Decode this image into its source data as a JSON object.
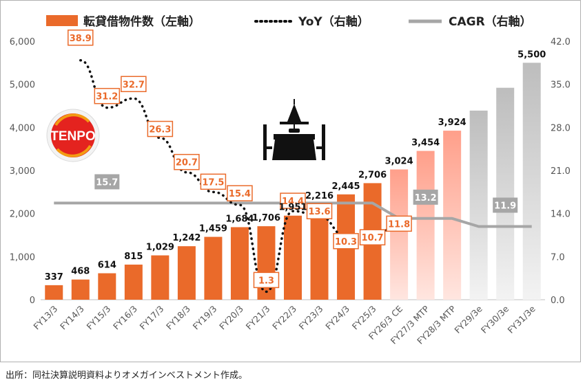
{
  "legend": {
    "bars": "転貸借物件数（左軸）",
    "yoy": "YoY（右軸）",
    "cagr": "CAGR（右軸）"
  },
  "logo_text": "TENPO",
  "icon": "restaurant-table-icon",
  "source": "出所：同社決算説明資料よりオメガインベストメント作成。",
  "colors": {
    "bar_actual": "#ea6a2a",
    "bar_plan_top": "#ff9f8a",
    "bar_plan_bottom": "#ffe6e0",
    "bar_estimate_top": "#bdbdbd",
    "bar_estimate_bottom": "#f3f3f3",
    "yoy_line": "#111111",
    "cagr_line": "#a6a6a6",
    "label_border": "#ea6a2a",
    "cagr_label_bg": "#a6a6a6"
  },
  "chart_data": {
    "type": "bar",
    "categories": [
      "FY13/3",
      "FY14/3",
      "FY15/3",
      "FY16/3",
      "FY17/3",
      "FY18/3",
      "FY19/3",
      "FY20/3",
      "FY21/3",
      "FY22/3",
      "FY23/3",
      "FY24/3",
      "FY25/3",
      "FY26/3 CE",
      "FY27/3 MTP",
      "FY28/3 MTP",
      "FY29/3e",
      "FY30/3e",
      "FY31/3e"
    ],
    "series": [
      {
        "name": "転貸借物件数（左軸）",
        "axis": "left",
        "values": [
          337,
          468,
          614,
          815,
          1029,
          1242,
          1459,
          1684,
          1706,
          1951,
          2216,
          2445,
          2706,
          3024,
          3454,
          3924,
          4390,
          4920,
          5500
        ],
        "labels": [
          "337",
          "468",
          "614",
          "815",
          "1,029",
          "1,242",
          "1,459",
          "1,684",
          "1,706",
          "1,951",
          "2,216",
          "2,445",
          "2,706",
          "3,024",
          "3,454",
          "3,924",
          "",
          "",
          "5,500"
        ],
        "kind": [
          "actual",
          "actual",
          "actual",
          "actual",
          "actual",
          "actual",
          "actual",
          "actual",
          "actual",
          "actual",
          "actual",
          "actual",
          "actual",
          "plan",
          "plan",
          "plan",
          "estimate",
          "estimate",
          "estimate"
        ]
      },
      {
        "name": "YoY（右軸）",
        "axis": "right",
        "type": "line",
        "style": "dotted",
        "values": [
          null,
          38.9,
          31.2,
          32.7,
          26.3,
          20.7,
          17.5,
          15.4,
          1.3,
          14.4,
          13.6,
          10.3,
          10.7,
          11.8,
          null,
          null,
          null,
          null,
          null
        ],
        "labels": [
          "",
          "38.9",
          "31.2",
          "32.7",
          "26.3",
          "20.7",
          "17.5",
          "15.4",
          "1.3",
          "14.4",
          "13.6",
          "10.3",
          "10.7",
          "11.8",
          "",
          "",
          "",
          "",
          ""
        ]
      },
      {
        "name": "CAGR（右軸）",
        "axis": "right",
        "type": "line",
        "values": [
          15.7,
          15.7,
          15.7,
          15.7,
          15.7,
          15.7,
          15.7,
          15.7,
          15.7,
          15.7,
          15.7,
          15.7,
          15.7,
          13.2,
          13.2,
          13.2,
          11.9,
          11.9,
          11.9
        ],
        "labels": [
          {
            "index": 2,
            "text": "15.7"
          },
          {
            "index": 14,
            "text": "13.2"
          },
          {
            "index": 17,
            "text": "11.9"
          }
        ]
      }
    ],
    "ylim_left": [
      0,
      6000
    ],
    "yticks_left": [
      "0",
      "1,000",
      "2,000",
      "3,000",
      "4,000",
      "5,000",
      "6,000"
    ],
    "ylim_right": [
      0,
      42
    ],
    "yticks_right": [
      "0.0",
      "7.0",
      "14.0",
      "21.0",
      "28.0",
      "35.0",
      "42.0"
    ],
    "legend_position": "top",
    "grid": false
  }
}
